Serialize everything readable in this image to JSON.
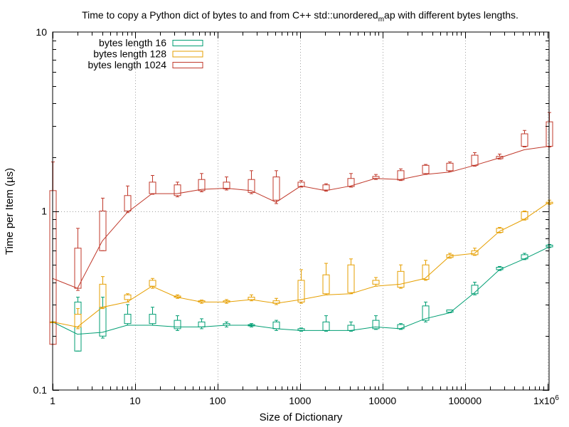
{
  "chart_data": {
    "type": "line",
    "title": "Time to copy a Python dict of bytes to and from C++ std::unordered",
    "title_subscript": "m",
    "title_suffix": "ap with different bytes lengths.",
    "xlabel": "Size of Dictionary",
    "ylabel": "Time per Item (µs)",
    "x_scale": "log",
    "y_scale": "log",
    "xlim": [
      1,
      1048576
    ],
    "ylim": [
      0.1,
      10
    ],
    "grid": true,
    "legend_position": "top-left",
    "x_ticks": [
      {
        "value": 1,
        "label": "1"
      },
      {
        "value": 10,
        "label": "10"
      },
      {
        "value": 100,
        "label": "100"
      },
      {
        "value": 1000,
        "label": "1000"
      },
      {
        "value": 10000,
        "label": "10000"
      },
      {
        "value": 100000,
        "label": "100000"
      }
    ],
    "x_last_tick": {
      "value": 1048576,
      "label_base": "1x10",
      "label_exp": "6"
    },
    "y_ticks": [
      {
        "value": 0.1,
        "label": "0.1"
      },
      {
        "value": 1,
        "label": "1"
      },
      {
        "value": 10,
        "label": "10"
      }
    ],
    "x": [
      1,
      2,
      4,
      8,
      16,
      32,
      64,
      128,
      256,
      512,
      1024,
      2048,
      4096,
      8192,
      16384,
      32768,
      65536,
      131072,
      262144,
      524288,
      1048576
    ],
    "series": [
      {
        "name": "bytes length 16",
        "color": "#009e73",
        "median": [
          0.24,
          0.205,
          0.21,
          0.23,
          0.23,
          0.225,
          0.225,
          0.23,
          0.23,
          0.22,
          0.215,
          0.215,
          0.215,
          0.225,
          0.22,
          0.25,
          0.27,
          0.35,
          0.47,
          0.54,
          0.63
        ],
        "box_low": [
          0.24,
          0.165,
          0.2,
          0.235,
          0.235,
          0.22,
          0.225,
          0.23,
          0.228,
          0.22,
          0.215,
          0.215,
          0.215,
          0.22,
          0.22,
          0.245,
          0.272,
          0.345,
          0.47,
          0.54,
          0.63
        ],
        "box_high": [
          0.24,
          0.31,
          0.29,
          0.265,
          0.265,
          0.245,
          0.24,
          0.235,
          0.232,
          0.24,
          0.22,
          0.24,
          0.23,
          0.245,
          0.232,
          0.295,
          0.28,
          0.385,
          0.485,
          0.57,
          0.645
        ],
        "whisker_low": [
          0.24,
          0.165,
          0.195,
          0.23,
          0.23,
          0.215,
          0.22,
          0.225,
          0.225,
          0.215,
          0.213,
          0.213,
          0.213,
          0.218,
          0.218,
          0.24,
          0.27,
          0.34,
          0.465,
          0.535,
          0.625
        ],
        "whisker_high": [
          0.24,
          0.33,
          0.33,
          0.3,
          0.29,
          0.26,
          0.25,
          0.24,
          0.235,
          0.245,
          0.222,
          0.26,
          0.24,
          0.26,
          0.235,
          0.31,
          0.28,
          0.4,
          0.49,
          0.58,
          0.65
        ]
      },
      {
        "name": "bytes length 128",
        "color": "#e69f00",
        "median": [
          0.24,
          0.225,
          0.29,
          0.31,
          0.38,
          0.33,
          0.31,
          0.31,
          0.32,
          0.305,
          0.32,
          0.34,
          0.345,
          0.38,
          0.39,
          0.42,
          0.56,
          0.58,
          0.77,
          0.9,
          1.12
        ],
        "box_low": [
          0.24,
          0.225,
          0.29,
          0.32,
          0.38,
          0.33,
          0.31,
          0.31,
          0.32,
          0.305,
          0.31,
          0.345,
          0.35,
          0.39,
          0.375,
          0.415,
          0.55,
          0.57,
          0.76,
          0.9,
          1.1
        ],
        "box_high": [
          0.24,
          0.265,
          0.39,
          0.34,
          0.41,
          0.335,
          0.315,
          0.315,
          0.33,
          0.315,
          0.41,
          0.44,
          0.5,
          0.41,
          0.46,
          0.5,
          0.57,
          0.6,
          0.8,
          0.99,
          1.12
        ],
        "whisker_low": [
          0.24,
          0.22,
          0.285,
          0.31,
          0.37,
          0.325,
          0.305,
          0.305,
          0.315,
          0.3,
          0.305,
          0.34,
          0.345,
          0.38,
          0.37,
          0.41,
          0.545,
          0.565,
          0.755,
          0.89,
          1.09
        ],
        "whisker_high": [
          0.24,
          0.285,
          0.43,
          0.345,
          0.42,
          0.34,
          0.318,
          0.32,
          0.34,
          0.325,
          0.47,
          0.51,
          0.54,
          0.425,
          0.5,
          0.53,
          0.58,
          0.62,
          0.81,
          1.0,
          1.15
        ]
      },
      {
        "name": "bytes length 1024",
        "color": "#c0392b",
        "median": [
          0.42,
          0.37,
          0.68,
          0.98,
          1.25,
          1.25,
          1.32,
          1.34,
          1.3,
          1.12,
          1.38,
          1.3,
          1.38,
          1.52,
          1.5,
          1.6,
          1.65,
          1.8,
          1.98,
          2.2,
          2.3
        ],
        "box_low": [
          0.18,
          0.37,
          0.6,
          1.0,
          1.25,
          1.22,
          1.3,
          1.33,
          1.27,
          1.15,
          1.37,
          1.31,
          1.37,
          1.52,
          1.49,
          1.62,
          1.68,
          1.8,
          1.96,
          2.3,
          2.3
        ],
        "box_high": [
          1.3,
          0.62,
          1.0,
          1.22,
          1.45,
          1.4,
          1.5,
          1.45,
          1.5,
          1.55,
          1.45,
          1.4,
          1.52,
          1.56,
          1.68,
          1.8,
          1.85,
          2.05,
          2.02,
          2.7,
          3.15
        ],
        "whisker_low": [
          0.18,
          0.36,
          0.6,
          0.98,
          1.24,
          1.2,
          1.28,
          1.31,
          1.25,
          1.1,
          1.36,
          1.29,
          1.36,
          1.5,
          1.48,
          1.6,
          1.66,
          1.78,
          1.95,
          2.28,
          2.28
        ],
        "whisker_high": [
          1.88,
          0.8,
          1.18,
          1.38,
          1.58,
          1.45,
          1.62,
          1.55,
          1.68,
          1.68,
          1.48,
          1.42,
          1.62,
          1.6,
          1.72,
          1.82,
          1.88,
          2.12,
          2.08,
          2.82,
          3.55
        ]
      }
    ]
  }
}
